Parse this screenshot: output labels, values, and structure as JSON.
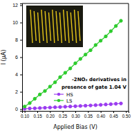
{
  "chart_data": {
    "type": "line",
    "x_label": "Applied Bias (V)",
    "y_label": "I (μA)",
    "annotations": [
      "-2NO₂ derivatives in",
      "presence of gate 1.04 V"
    ],
    "x": [
      0.1,
      0.12,
      0.14,
      0.16,
      0.18,
      0.2,
      0.22,
      0.24,
      0.26,
      0.28,
      0.3,
      0.32,
      0.34,
      0.36,
      0.38,
      0.4,
      0.42,
      0.44,
      0.46,
      0.48
    ],
    "series": [
      {
        "name": "HS",
        "color": "#9b3cf0",
        "marker": "circle",
        "line_style": "solid",
        "values": [
          0.05,
          0.08,
          0.1,
          0.13,
          0.16,
          0.19,
          0.22,
          0.25,
          0.28,
          0.31,
          0.34,
          0.37,
          0.4,
          0.43,
          0.46,
          0.5,
          0.54,
          0.58,
          0.62,
          0.66
        ]
      },
      {
        "name": "LS",
        "color": "#2ecc2e",
        "marker": "circle",
        "line_style": "solid",
        "values": [
          0.3,
          0.7,
          1.2,
          1.7,
          2.1,
          2.6,
          3.1,
          3.7,
          4.2,
          4.7,
          5.3,
          5.8,
          6.3,
          6.8,
          7.4,
          7.9,
          8.4,
          9.0,
          9.6,
          10.2
        ]
      }
    ],
    "xlim": [
      0.09,
      0.51
    ],
    "ylim": [
      -0.2,
      12.2
    ],
    "xticks": [
      {
        "value": 0.1,
        "label": "0.10"
      },
      {
        "value": 0.15,
        "label": "0.15"
      },
      {
        "value": 0.2,
        "label": "0.20"
      },
      {
        "value": 0.25,
        "label": "0.25"
      },
      {
        "value": 0.3,
        "label": "0.30"
      },
      {
        "value": 0.35,
        "label": "0.35"
      },
      {
        "value": 0.4,
        "label": "0.40"
      },
      {
        "value": 0.45,
        "label": "0.45"
      },
      {
        "value": 0.5,
        "label": "0.50"
      }
    ],
    "yticks": [
      0,
      2,
      4,
      6,
      8,
      10,
      12
    ],
    "grid": false,
    "legend": "lower center"
  }
}
